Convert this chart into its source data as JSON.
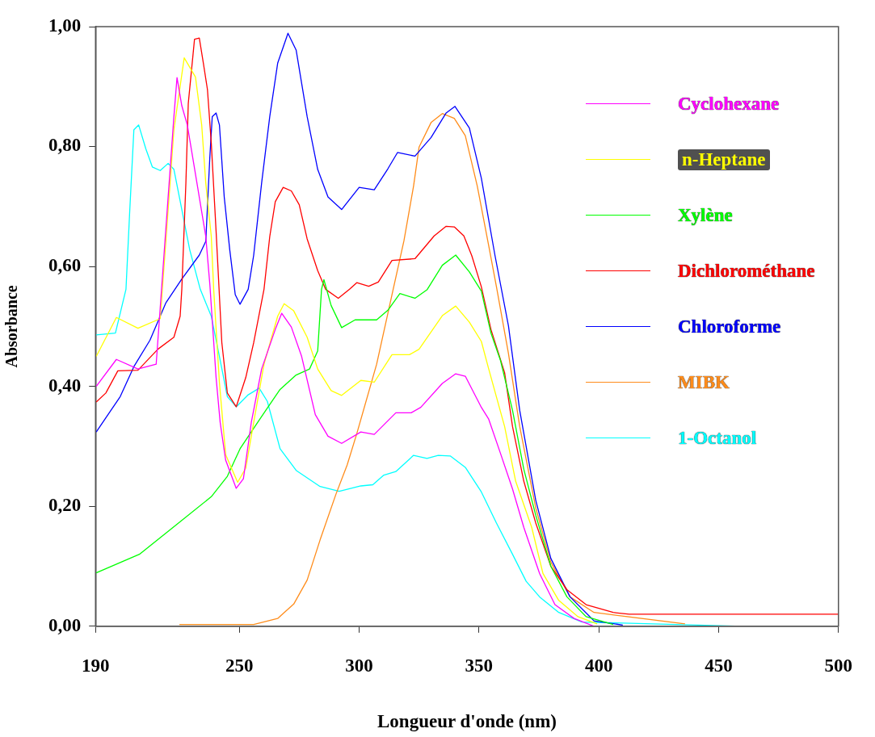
{
  "chart_data": {
    "type": "line",
    "xlabel": "Longueur d'onde (nm)",
    "ylabel": "Absorbance",
    "xlim": [
      190,
      500
    ],
    "xticks": [
      190,
      250,
      300,
      350,
      400,
      450,
      500
    ],
    "ylim": [
      0,
      1
    ],
    "yticks": [
      {
        "value": 0,
        "label": "0,00"
      },
      {
        "value": 0.2,
        "label": "0,20"
      },
      {
        "value": 0.4,
        "label": "0,40"
      },
      {
        "value": 0.6,
        "label": "0,60"
      },
      {
        "value": 0.8,
        "label": "0,80"
      },
      {
        "value": 1,
        "label": "1,00"
      }
    ],
    "grid": false,
    "legend": "top right",
    "marker": "none",
    "line_style": "solid",
    "series": [
      {
        "name": "Cyclohexane",
        "color": "#ff00ff",
        "x": [
          190.3,
          198.7,
          207.7,
          215.3,
          222.7,
          224,
          226,
          228.3,
          232.7,
          236,
          237.7,
          240.3,
          242,
          244.3,
          248.7,
          251.7,
          255,
          259.3,
          265,
          267.7,
          271.7,
          276,
          281.7,
          287,
          292.7,
          300.7,
          306.3,
          315.3,
          321.7,
          325.7,
          334.7,
          340.3,
          344.3,
          351,
          354,
          359,
          364,
          368.7,
          375.3,
          381.7,
          389.7,
          398
        ],
        "values": [
          0.4,
          0.445,
          0.429,
          0.437,
          0.85,
          0.915,
          0.868,
          0.836,
          0.73,
          0.65,
          0.57,
          0.415,
          0.34,
          0.277,
          0.23,
          0.246,
          0.34,
          0.429,
          0.495,
          0.522,
          0.499,
          0.45,
          0.353,
          0.317,
          0.305,
          0.324,
          0.32,
          0.356,
          0.356,
          0.365,
          0.405,
          0.421,
          0.417,
          0.365,
          0.346,
          0.288,
          0.229,
          0.165,
          0.088,
          0.036,
          0.013,
          0
        ]
      },
      {
        "name": "n-Heptane",
        "color": "#ffff00",
        "x": [
          190.3,
          198.7,
          207.7,
          217,
          220.3,
          222.7,
          227,
          231.7,
          234.3,
          236,
          238.3,
          239.3,
          241.7,
          244.3,
          249.3,
          252.7,
          256,
          260.3,
          266,
          268.7,
          272.7,
          278.3,
          282.7,
          288.3,
          292.7,
          300.7,
          306.3,
          313.7,
          321,
          325,
          334.7,
          340.3,
          346,
          351,
          354,
          360.7,
          365.3,
          372,
          376.7,
          383.3,
          391.3,
          399.3
        ],
        "values": [
          0.45,
          0.515,
          0.497,
          0.513,
          0.695,
          0.828,
          0.948,
          0.916,
          0.836,
          0.739,
          0.65,
          0.562,
          0.406,
          0.286,
          0.24,
          0.264,
          0.34,
          0.437,
          0.517,
          0.538,
          0.526,
          0.482,
          0.429,
          0.393,
          0.385,
          0.41,
          0.407,
          0.453,
          0.453,
          0.462,
          0.518,
          0.534,
          0.507,
          0.475,
          0.43,
          0.333,
          0.242,
          0.165,
          0.088,
          0.043,
          0.016,
          0.004
        ]
      },
      {
        "name": "Xylène",
        "color": "#00ff00",
        "x": [
          190.3,
          208.3,
          222.7,
          238.3,
          245,
          250.3,
          258.3,
          267,
          273.7,
          279.3,
          282.7,
          284.3,
          285.3,
          288.3,
          292.7,
          298.3,
          307.3,
          312,
          317,
          323.3,
          328.3,
          334.7,
          340.3,
          346,
          351,
          355,
          359,
          364,
          368.7,
          373.7,
          380,
          386.7,
          394.7,
          406
        ],
        "values": [
          0.089,
          0.12,
          0.166,
          0.216,
          0.25,
          0.296,
          0.344,
          0.395,
          0.419,
          0.429,
          0.459,
          0.562,
          0.578,
          0.535,
          0.498,
          0.511,
          0.511,
          0.527,
          0.555,
          0.547,
          0.561,
          0.602,
          0.619,
          0.591,
          0.559,
          0.489,
          0.443,
          0.36,
          0.262,
          0.185,
          0.1,
          0.049,
          0.016,
          0.003
        ]
      },
      {
        "name": "Dichlorométhane",
        "color": "#ff0000",
        "x": [
          190.3,
          194.3,
          199.3,
          207.7,
          216,
          222.7,
          225.3,
          226,
          227.7,
          228.7,
          231.3,
          233.3,
          235,
          236.7,
          238.3,
          240.3,
          242.7,
          245,
          248.7,
          252.7,
          256,
          260.3,
          262.7,
          265,
          268.3,
          271.7,
          275,
          278.3,
          282.7,
          286,
          291.3,
          296,
          299,
          304,
          308,
          313.7,
          323.3,
          331.3,
          336.3,
          339.7,
          343.7,
          347,
          351,
          355,
          360.7,
          364,
          368.7,
          373.7,
          380,
          386.7,
          394.7,
          406,
          412.7,
          500
        ],
        "values": [
          0.374,
          0.389,
          0.426,
          0.427,
          0.462,
          0.482,
          0.517,
          0.562,
          0.739,
          0.872,
          0.979,
          0.981,
          0.939,
          0.895,
          0.806,
          0.659,
          0.473,
          0.389,
          0.366,
          0.415,
          0.473,
          0.562,
          0.65,
          0.708,
          0.732,
          0.726,
          0.703,
          0.646,
          0.593,
          0.562,
          0.547,
          0.562,
          0.573,
          0.567,
          0.574,
          0.61,
          0.613,
          0.651,
          0.667,
          0.666,
          0.651,
          0.618,
          0.566,
          0.495,
          0.423,
          0.333,
          0.242,
          0.172,
          0.1,
          0.061,
          0.036,
          0.023,
          0.02,
          0.02
        ]
      },
      {
        "name": "Chloroforme",
        "color": "#0000ff",
        "x": [
          190.3,
          200.3,
          206,
          212.7,
          219.3,
          226,
          233.3,
          236,
          237.7,
          238.7,
          240.3,
          241.7,
          243.7,
          246,
          248.3,
          250.3,
          253.7,
          256,
          259.3,
          262.7,
          266,
          270.3,
          273.7,
          278.3,
          282.7,
          287,
          292.7,
          300,
          306.3,
          312,
          316,
          323.3,
          330,
          336.3,
          340,
          346,
          351,
          356.7,
          362.3,
          367,
          373.7,
          380,
          388,
          398,
          410
        ],
        "values": [
          0.324,
          0.383,
          0.433,
          0.477,
          0.539,
          0.579,
          0.619,
          0.642,
          0.783,
          0.85,
          0.856,
          0.836,
          0.716,
          0.628,
          0.553,
          0.537,
          0.562,
          0.619,
          0.739,
          0.85,
          0.939,
          0.989,
          0.961,
          0.85,
          0.762,
          0.716,
          0.695,
          0.732,
          0.728,
          0.763,
          0.79,
          0.784,
          0.815,
          0.856,
          0.867,
          0.831,
          0.747,
          0.618,
          0.501,
          0.36,
          0.21,
          0.113,
          0.049,
          0.009,
          0.002
        ]
      },
      {
        "name": "MIBK",
        "color": "#ff8c1a",
        "x": [
          225,
          256,
          266,
          272.7,
          278.3,
          283.7,
          290.3,
          295,
          299,
          307.3,
          313.7,
          318.7,
          322.7,
          325,
          330,
          334.7,
          339.7,
          344.3,
          349.3,
          354,
          357.3,
          362.3,
          367,
          373.7,
          380,
          388,
          398,
          436
        ],
        "values": [
          0.003,
          0.003,
          0.013,
          0.037,
          0.077,
          0.144,
          0.22,
          0.269,
          0.321,
          0.437,
          0.553,
          0.643,
          0.734,
          0.799,
          0.84,
          0.855,
          0.847,
          0.818,
          0.734,
          0.636,
          0.566,
          0.455,
          0.333,
          0.197,
          0.107,
          0.049,
          0.023,
          0.004
        ]
      },
      {
        "name": "1-Octanol",
        "color": "#00ffff",
        "x": [
          190.3,
          198.3,
          202.7,
          204.3,
          206,
          208,
          211,
          213.7,
          217,
          220.3,
          222.7,
          226,
          229.3,
          233.7,
          238.3,
          241.7,
          245,
          248.7,
          253.7,
          258.3,
          261.7,
          267,
          273.7,
          283.7,
          291.7,
          300.7,
          305.7,
          310.3,
          315.3,
          322.7,
          328.3,
          333,
          338,
          344.3,
          351,
          357.3,
          364,
          369.7,
          375.3,
          383.3,
          393,
          460
        ],
        "values": [
          0.486,
          0.489,
          0.562,
          0.695,
          0.828,
          0.836,
          0.796,
          0.766,
          0.76,
          0.772,
          0.762,
          0.695,
          0.628,
          0.562,
          0.517,
          0.45,
          0.383,
          0.366,
          0.386,
          0.397,
          0.375,
          0.296,
          0.26,
          0.233,
          0.225,
          0.234,
          0.236,
          0.252,
          0.258,
          0.285,
          0.28,
          0.285,
          0.284,
          0.265,
          0.224,
          0.172,
          0.12,
          0.075,
          0.049,
          0.023,
          0.007,
          0
        ]
      }
    ]
  }
}
